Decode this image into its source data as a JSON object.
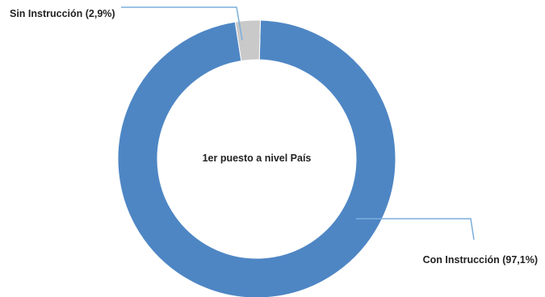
{
  "chart_data": {
    "type": "pie",
    "style": "donut",
    "center_text": "1er puesto a nivel País",
    "slices": [
      {
        "label": "Sin Instrucción",
        "value": 2.9,
        "display": "Sin Instrucción (2,9%)",
        "color": "#c9c9c9"
      },
      {
        "label": "Con Instrucción",
        "value": 97.1,
        "display": "Con Instrucción (97,1%)",
        "color": "#4e86c4"
      }
    ],
    "leader_line_color": "#7aaedb",
    "label_placement": [
      "top-left",
      "bottom-right"
    ]
  }
}
